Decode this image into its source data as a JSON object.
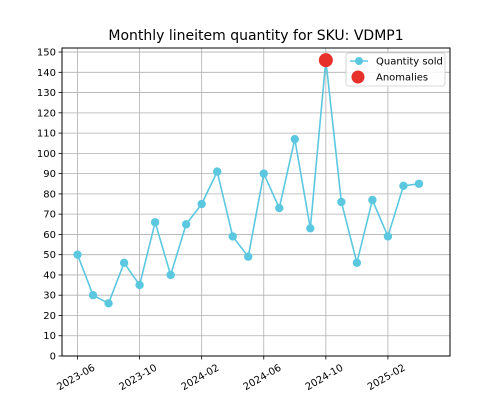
{
  "chart_data": {
    "type": "line",
    "title": "Monthly lineitem quantity for SKU: VDMP1",
    "xlabel": "",
    "ylabel": "",
    "x_tick_labels": [
      "2023-06",
      "2023-10",
      "2024-02",
      "2024-06",
      "2024-10",
      "2025-02"
    ],
    "y_tick_labels": [
      "0",
      "10",
      "20",
      "30",
      "40",
      "50",
      "60",
      "70",
      "80",
      "90",
      "100",
      "110",
      "120",
      "130",
      "140",
      "150"
    ],
    "ylim": [
      0,
      152
    ],
    "xlim": [
      "2023-05",
      "2025-06"
    ],
    "grid": true,
    "legend_position": "top-right",
    "series": [
      {
        "name": "Quantity sold",
        "color": "#5bc8e0",
        "x": [
          "2023-06",
          "2023-07",
          "2023-08",
          "2023-09",
          "2023-10",
          "2023-11",
          "2023-12",
          "2024-01",
          "2024-02",
          "2024-03",
          "2024-04",
          "2024-05",
          "2024-06",
          "2024-07",
          "2024-08",
          "2024-09",
          "2024-10",
          "2024-11",
          "2024-12",
          "2025-01",
          "2025-02",
          "2025-03",
          "2025-04"
        ],
        "values": [
          50,
          30,
          26,
          46,
          35,
          66,
          40,
          65,
          75,
          91,
          59,
          49,
          90,
          73,
          107,
          63,
          146,
          76,
          46,
          77,
          59,
          84,
          85
        ]
      },
      {
        "name": "Anomalies",
        "color": "#e8302a",
        "x": [
          "2024-10"
        ],
        "values": [
          146
        ]
      }
    ]
  }
}
